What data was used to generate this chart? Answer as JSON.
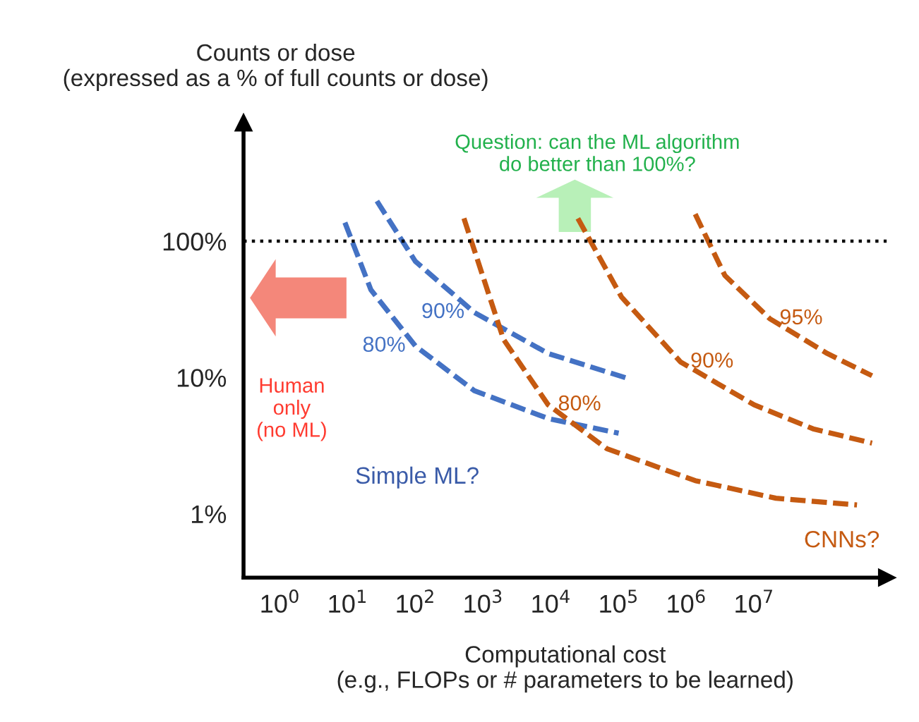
{
  "chart_data": {
    "type": "line",
    "ylabel": "Counts or dose\n(expressed as a % of full counts or dose)",
    "xlabel": "Computational cost\n(e.g., FLOPs or # parameters to be learned)",
    "log": "xy",
    "grid": false,
    "legend": false,
    "line_style": "dashed",
    "marker": "none",
    "xlim": [
      0.29,
      910000000
    ],
    "ylim": [
      0.34,
      740
    ],
    "xticks": [
      {
        "value": 1,
        "label": "10$^{0}$"
      },
      {
        "value": 10,
        "label": "10$^{1}$"
      },
      {
        "value": 100,
        "label": "10$^{2}$"
      },
      {
        "value": 1000,
        "label": "10$^{3}$"
      },
      {
        "value": 10000,
        "label": "10$^{4}$"
      },
      {
        "value": 100000,
        "label": "10$^{5}$"
      },
      {
        "value": 1000000,
        "label": "10$^{6}$"
      },
      {
        "value": 10000000,
        "label": "10$^{7}$"
      }
    ],
    "yticks": [
      {
        "value": 1,
        "label": "1%"
      },
      {
        "value": 10,
        "label": "10%"
      },
      {
        "value": 100,
        "label": "100%"
      }
    ],
    "series": [
      {
        "name": "80%",
        "color": "#4472c4",
        "x": [
          9.1,
          22,
          100,
          740,
          9100,
          100000
        ],
        "values": [
          137,
          44,
          17,
          8.0,
          5.0,
          3.9
        ]
      },
      {
        "name": "90%",
        "color": "#4472c4",
        "x": [
          27,
          100,
          740,
          9100,
          140000
        ],
        "values": [
          197,
          71,
          30,
          15,
          9.8
        ]
      },
      {
        "name": "80%",
        "color": "#c55a11",
        "x": [
          520,
          2000,
          9100,
          67000,
          1350000,
          21000000,
          330000000
        ],
        "values": [
          147,
          19,
          6.3,
          3.0,
          1.75,
          1.3,
          1.16
        ]
      },
      {
        "name": "90%",
        "color": "#c55a11",
        "x": [
          25000,
          110000,
          820000,
          10000000,
          74000000,
          550000000
        ],
        "values": [
          147,
          39,
          13,
          6.3,
          4.2,
          3.3
        ]
      },
      {
        "name": "95%",
        "color": "#c55a11",
        "x": [
          1350000,
          3700000,
          17000000,
          120000000,
          550000000
        ],
        "values": [
          158,
          56,
          27,
          15,
          10.3
        ]
      }
    ],
    "ref_lines": [
      {
        "axis": "y",
        "value": 100,
        "color": "#000000",
        "line_style": "dotted"
      }
    ],
    "annotations": [
      "Human\nonly\n(no ML)",
      "Question: can the ML algorithm\ndo better than 100%?",
      "Simple ML?",
      "CNNs?"
    ]
  }
}
